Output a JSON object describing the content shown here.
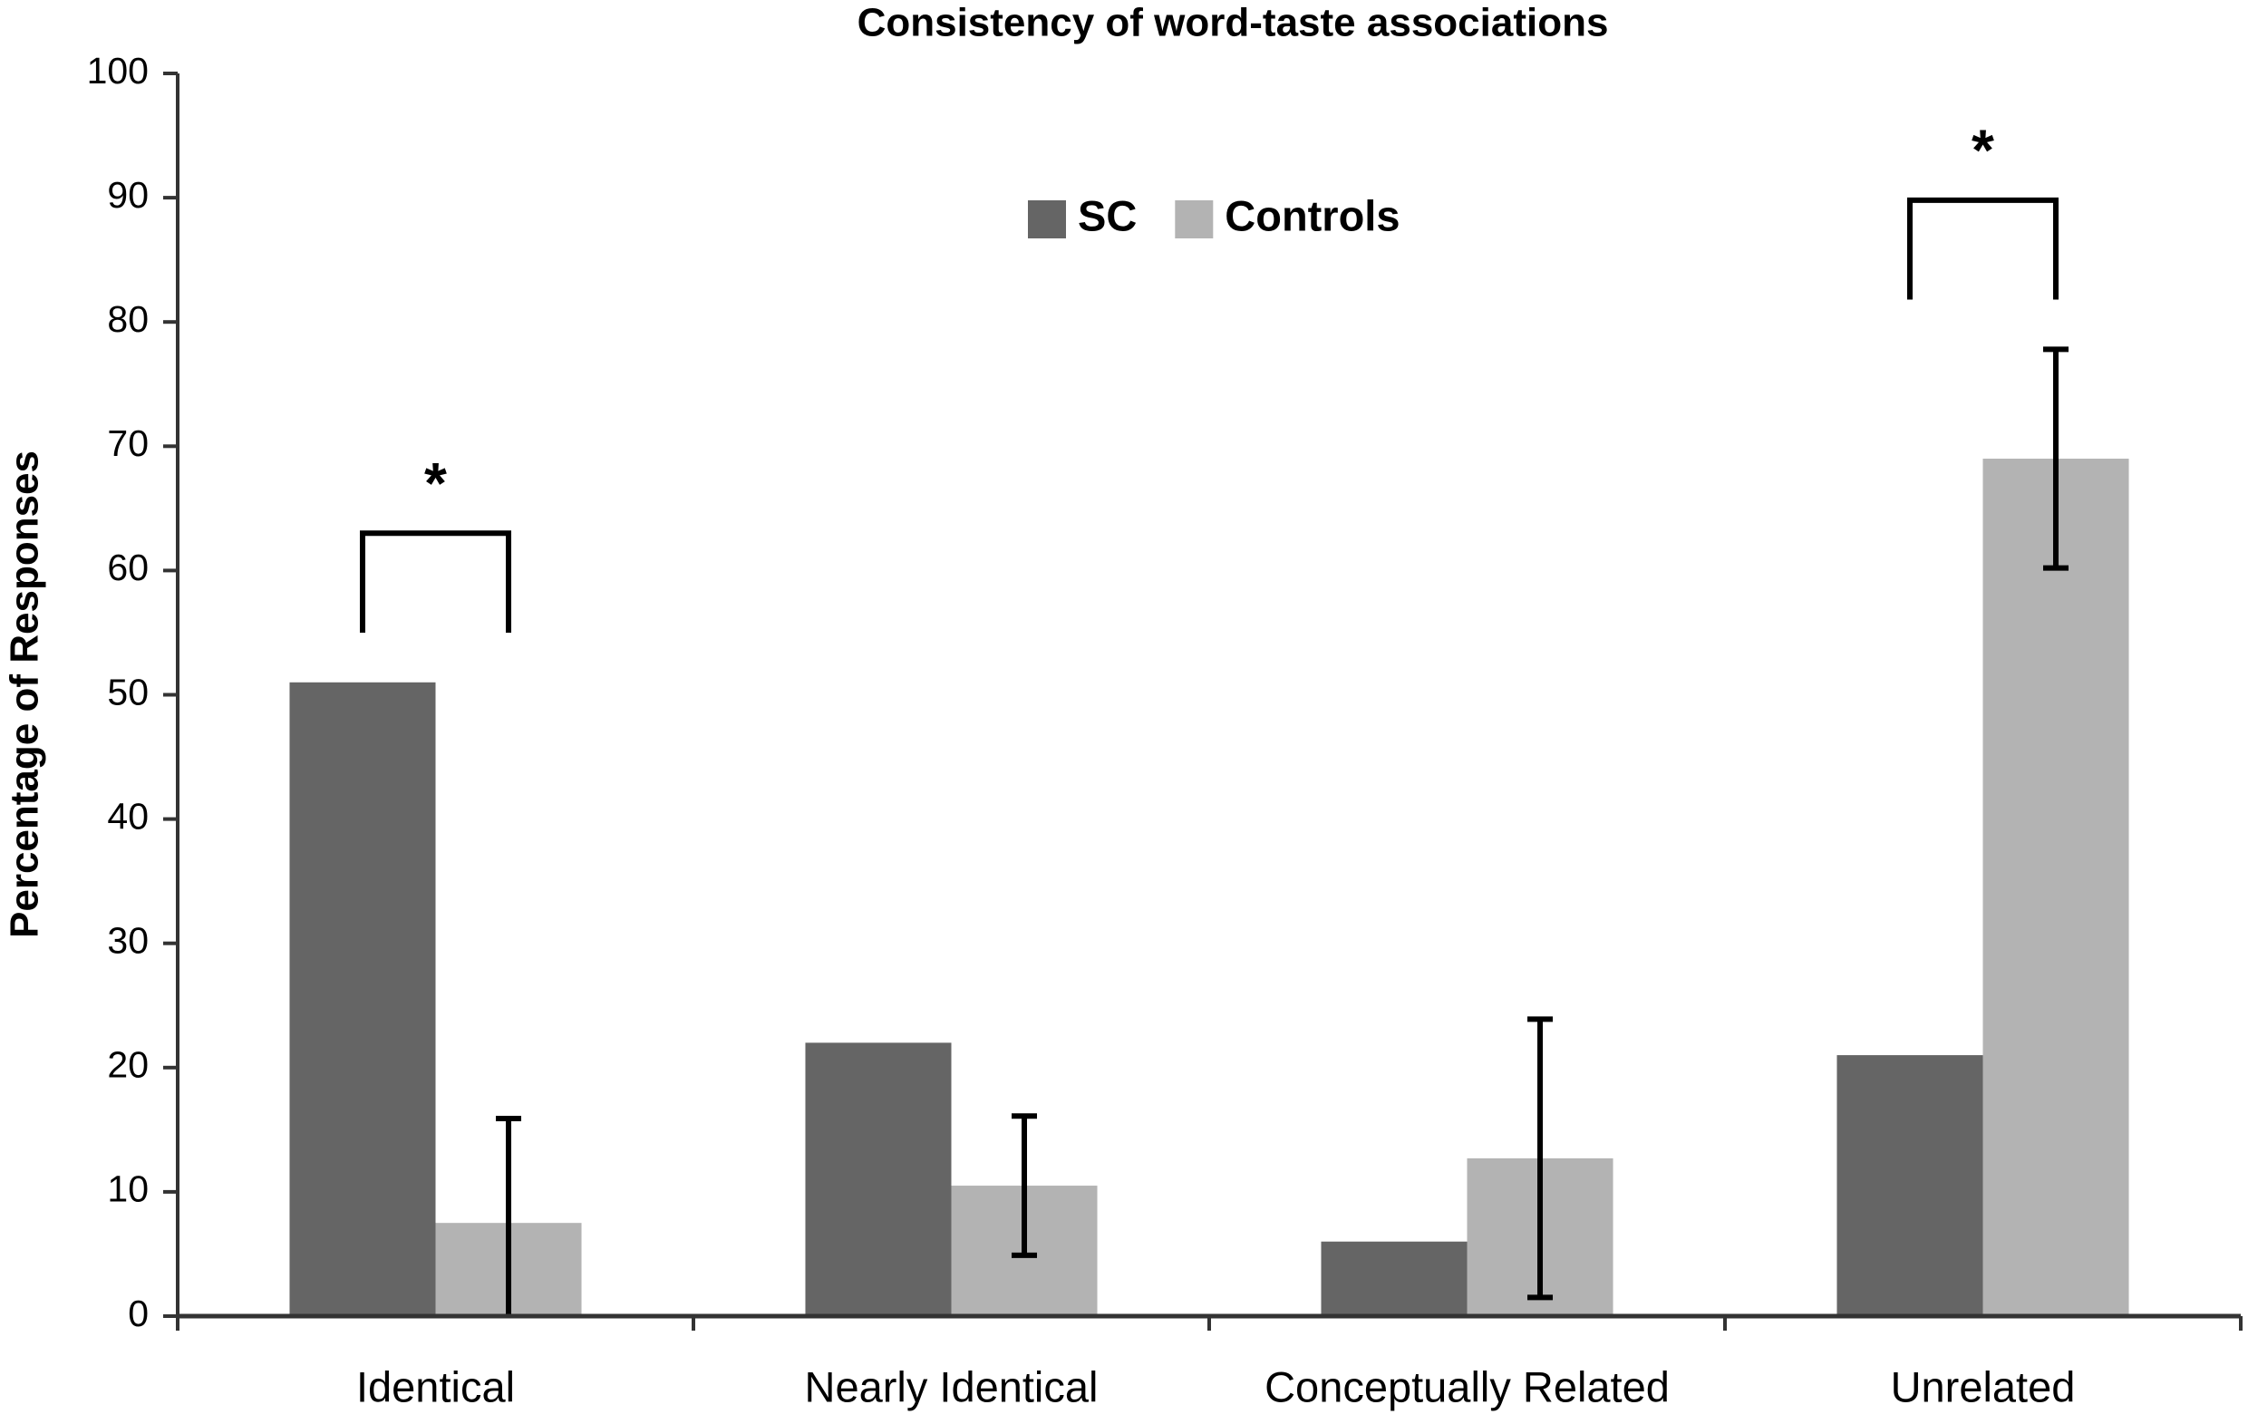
{
  "chart_data": {
    "type": "bar",
    "title": "Consistency of word-taste associations",
    "y_label": "Percentage of Responses",
    "categories": [
      "Identical",
      "Nearly Identical",
      "Conceptually Related",
      "Unrelated"
    ],
    "series": [
      {
        "name": "SC",
        "color": "#656565",
        "values": [
          51,
          22,
          6,
          21
        ]
      },
      {
        "name": "Controls",
        "color": "#b3b3b3",
        "values": [
          7.5,
          10.5,
          12.7,
          69
        ],
        "errors": [
          8.4,
          5.6,
          11.2,
          8.8
        ]
      }
    ],
    "ylim": [
      0,
      100
    ],
    "yticks": [
      0,
      10,
      20,
      30,
      40,
      50,
      60,
      70,
      80,
      90,
      100
    ],
    "annotations": [
      {
        "text": "*",
        "category": 0
      },
      {
        "text": "*",
        "category": 3
      }
    ]
  }
}
